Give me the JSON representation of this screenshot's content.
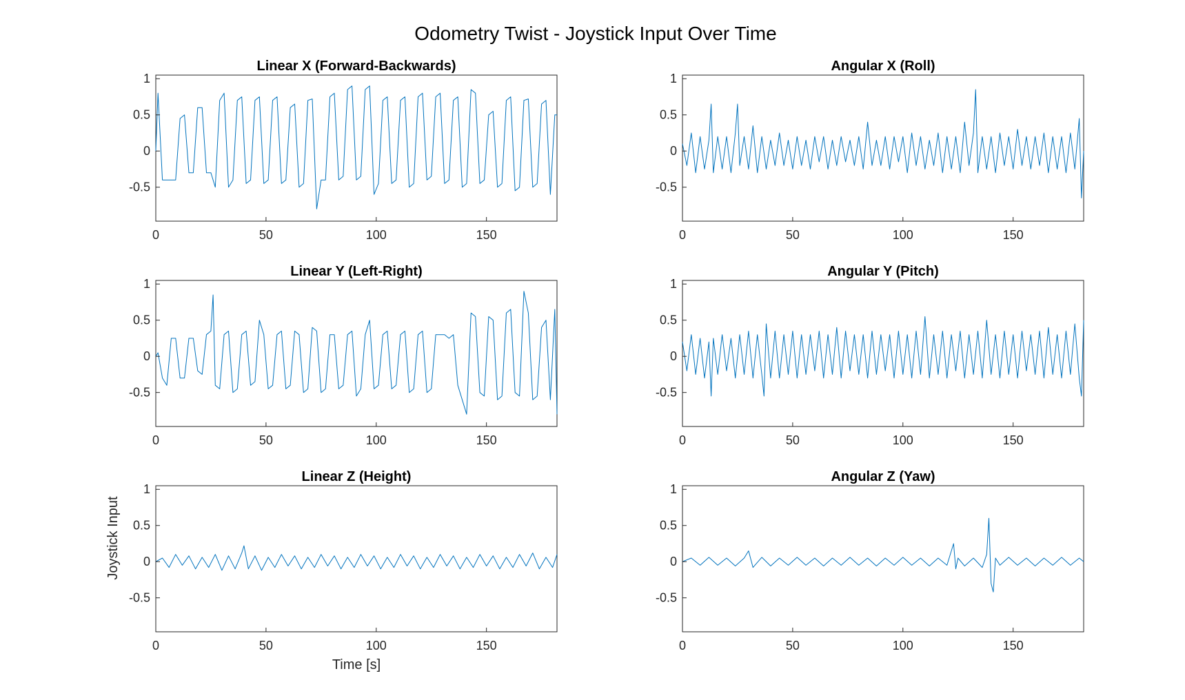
{
  "title": "Odometry Twist - Joystick Input Over Time",
  "line_color": "#0072BD",
  "chart_data": [
    {
      "type": "line",
      "title": "Linear X (Forward-Backwards)",
      "xlabel": "",
      "ylabel": "",
      "xlim": [
        0,
        182
      ],
      "ylim": [
        -0.97,
        1.05
      ],
      "xticks": [
        0,
        50,
        100,
        150
      ],
      "yticks": [
        -0.5,
        0,
        0.5,
        1
      ],
      "xtick_labels": [
        "0",
        "50",
        "100",
        "150"
      ],
      "ytick_labels": [
        "-0.5",
        "0",
        "0.5",
        "1"
      ],
      "x": [
        0,
        1,
        3,
        5,
        7,
        9,
        11,
        13,
        15,
        17,
        19,
        21,
        23,
        25,
        27,
        29,
        31,
        33,
        35,
        37,
        39,
        41,
        43,
        45,
        47,
        49,
        51,
        53,
        55,
        57,
        59,
        61,
        63,
        65,
        67,
        69,
        71,
        73,
        75,
        77,
        79,
        81,
        83,
        85,
        87,
        89,
        91,
        93,
        95,
        97,
        99,
        101,
        103,
        105,
        107,
        109,
        111,
        113,
        115,
        117,
        119,
        121,
        123,
        125,
        127,
        129,
        131,
        133,
        135,
        137,
        139,
        141,
        143,
        145,
        147,
        149,
        151,
        153,
        155,
        157,
        159,
        161,
        163,
        165,
        167,
        169,
        171,
        173,
        175,
        177,
        179,
        181,
        182
      ],
      "y": [
        0.0,
        0.8,
        -0.4,
        -0.4,
        -0.4,
        -0.4,
        0.45,
        0.5,
        -0.3,
        -0.3,
        0.6,
        0.6,
        -0.3,
        -0.3,
        -0.5,
        0.7,
        0.8,
        -0.5,
        -0.4,
        0.7,
        0.75,
        -0.45,
        -0.4,
        0.7,
        0.75,
        -0.45,
        -0.4,
        0.7,
        0.75,
        -0.45,
        -0.4,
        0.6,
        0.65,
        -0.5,
        -0.45,
        0.7,
        0.72,
        -0.8,
        -0.4,
        -0.4,
        0.75,
        0.8,
        -0.4,
        -0.35,
        0.85,
        0.9,
        -0.4,
        -0.35,
        0.85,
        0.9,
        -0.6,
        -0.45,
        0.7,
        0.75,
        -0.45,
        -0.4,
        0.7,
        0.75,
        -0.5,
        -0.45,
        0.75,
        0.8,
        -0.4,
        -0.35,
        0.75,
        0.8,
        -0.45,
        -0.4,
        0.7,
        0.75,
        -0.5,
        -0.45,
        0.85,
        0.8,
        -0.45,
        -0.4,
        0.5,
        0.55,
        -0.5,
        -0.45,
        0.7,
        0.75,
        -0.55,
        -0.5,
        0.7,
        0.72,
        -0.5,
        -0.45,
        0.65,
        0.7,
        -0.6,
        0.5,
        0.5
      ]
    },
    {
      "type": "line",
      "title": "Angular X (Roll)",
      "xlabel": "",
      "ylabel": "",
      "xlim": [
        0,
        182
      ],
      "ylim": [
        -0.97,
        1.05
      ],
      "xticks": [
        0,
        50,
        100,
        150
      ],
      "yticks": [
        -0.5,
        0,
        0.5,
        1
      ],
      "xtick_labels": [
        "0",
        "50",
        "100",
        "150"
      ],
      "ytick_labels": [
        "-0.5",
        "0",
        "0.5",
        "1"
      ],
      "x": [
        0,
        2,
        4,
        6,
        8,
        10,
        12,
        13,
        14,
        16,
        18,
        20,
        22,
        24,
        25,
        26,
        28,
        30,
        32,
        34,
        36,
        38,
        40,
        42,
        44,
        46,
        48,
        50,
        52,
        54,
        56,
        58,
        60,
        62,
        64,
        66,
        68,
        70,
        72,
        74,
        76,
        78,
        80,
        82,
        84,
        86,
        88,
        90,
        92,
        94,
        96,
        98,
        100,
        102,
        104,
        106,
        108,
        110,
        112,
        114,
        116,
        118,
        120,
        122,
        124,
        126,
        128,
        130,
        132,
        133,
        134,
        136,
        138,
        140,
        142,
        144,
        146,
        148,
        150,
        152,
        154,
        156,
        158,
        160,
        162,
        164,
        166,
        168,
        170,
        172,
        174,
        176,
        178,
        180,
        181,
        182
      ],
      "y": [
        0.1,
        -0.2,
        0.25,
        -0.3,
        0.2,
        -0.25,
        0.15,
        0.65,
        -0.3,
        0.2,
        -0.25,
        0.2,
        -0.3,
        0.25,
        0.65,
        -0.2,
        0.2,
        -0.25,
        0.35,
        -0.3,
        0.2,
        -0.25,
        0.15,
        -0.2,
        0.25,
        -0.2,
        0.15,
        -0.25,
        0.2,
        -0.2,
        0.15,
        -0.25,
        0.2,
        -0.15,
        0.2,
        -0.25,
        0.15,
        -0.2,
        0.2,
        -0.15,
        0.15,
        -0.2,
        0.2,
        -0.25,
        0.4,
        -0.2,
        0.15,
        -0.2,
        0.2,
        -0.25,
        0.2,
        -0.15,
        0.2,
        -0.3,
        0.25,
        -0.2,
        0.2,
        -0.25,
        0.15,
        -0.2,
        0.25,
        -0.3,
        0.2,
        -0.25,
        0.2,
        -0.3,
        0.4,
        -0.2,
        0.25,
        0.85,
        -0.3,
        0.2,
        -0.25,
        0.2,
        -0.3,
        0.25,
        -0.2,
        0.2,
        -0.25,
        0.3,
        -0.2,
        0.2,
        -0.25,
        0.2,
        -0.2,
        0.25,
        -0.3,
        0.2,
        -0.25,
        0.2,
        -0.3,
        0.25,
        -0.25,
        0.45,
        -0.65,
        0.0
      ]
    },
    {
      "type": "line",
      "title": "Linear Y (Left-Right)",
      "xlabel": "",
      "ylabel": "",
      "xlim": [
        0,
        182
      ],
      "ylim": [
        -0.97,
        1.05
      ],
      "xticks": [
        0,
        50,
        100,
        150
      ],
      "yticks": [
        -0.5,
        0,
        0.5,
        1
      ],
      "xtick_labels": [
        "0",
        "50",
        "100",
        "150"
      ],
      "ytick_labels": [
        "-0.5",
        "0",
        "0.5",
        "1"
      ],
      "x": [
        0,
        1,
        3,
        5,
        7,
        9,
        11,
        13,
        15,
        17,
        19,
        21,
        23,
        25,
        26,
        27,
        29,
        31,
        33,
        35,
        37,
        39,
        41,
        43,
        45,
        47,
        49,
        51,
        53,
        55,
        57,
        59,
        61,
        63,
        65,
        67,
        69,
        71,
        73,
        75,
        77,
        79,
        81,
        83,
        85,
        87,
        89,
        91,
        93,
        95,
        97,
        99,
        101,
        103,
        105,
        107,
        109,
        111,
        113,
        115,
        117,
        119,
        121,
        123,
        125,
        127,
        129,
        131,
        133,
        135,
        137,
        139,
        141,
        143,
        145,
        147,
        149,
        151,
        153,
        155,
        157,
        159,
        161,
        163,
        165,
        167,
        169,
        171,
        173,
        175,
        177,
        179,
        181,
        182
      ],
      "y": [
        0.0,
        0.05,
        -0.3,
        -0.4,
        0.25,
        0.25,
        -0.3,
        -0.3,
        0.25,
        0.25,
        -0.2,
        -0.25,
        0.3,
        0.35,
        0.85,
        -0.4,
        -0.45,
        0.3,
        0.35,
        -0.5,
        -0.45,
        0.3,
        0.35,
        -0.4,
        -0.35,
        0.5,
        0.3,
        -0.45,
        -0.4,
        0.3,
        0.35,
        -0.45,
        -0.4,
        0.35,
        0.3,
        -0.5,
        -0.45,
        0.4,
        0.35,
        -0.5,
        -0.45,
        0.3,
        0.3,
        -0.45,
        -0.4,
        0.3,
        0.35,
        -0.55,
        -0.45,
        0.3,
        0.5,
        -0.45,
        -0.4,
        0.3,
        0.35,
        -0.45,
        -0.4,
        0.3,
        0.35,
        -0.5,
        -0.45,
        0.3,
        0.35,
        -0.5,
        -0.45,
        0.3,
        0.3,
        0.3,
        0.25,
        0.3,
        -0.4,
        -0.6,
        -0.8,
        0.6,
        0.55,
        -0.5,
        -0.55,
        0.55,
        0.5,
        -0.6,
        -0.55,
        0.6,
        0.65,
        -0.5,
        -0.55,
        0.9,
        0.6,
        -0.6,
        -0.55,
        0.4,
        0.5,
        -0.6,
        0.65,
        -0.8
      ]
    },
    {
      "type": "line",
      "title": "Angular Y (Pitch)",
      "xlabel": "",
      "ylabel": "",
      "xlim": [
        0,
        182
      ],
      "ylim": [
        -0.97,
        1.05
      ],
      "xticks": [
        0,
        50,
        100,
        150
      ],
      "yticks": [
        -0.5,
        0,
        0.5,
        1
      ],
      "xtick_labels": [
        "0",
        "50",
        "100",
        "150"
      ],
      "ytick_labels": [
        "-0.5",
        "0",
        "0.5",
        "1"
      ],
      "x": [
        0,
        2,
        4,
        6,
        8,
        10,
        12,
        13,
        14,
        16,
        18,
        20,
        22,
        24,
        26,
        28,
        30,
        32,
        34,
        36,
        37,
        38,
        40,
        42,
        44,
        46,
        48,
        50,
        52,
        54,
        56,
        58,
        60,
        62,
        64,
        66,
        68,
        70,
        72,
        74,
        76,
        78,
        80,
        82,
        84,
        86,
        88,
        90,
        92,
        94,
        96,
        98,
        100,
        102,
        104,
        106,
        108,
        110,
        112,
        114,
        116,
        118,
        120,
        122,
        124,
        126,
        128,
        130,
        132,
        134,
        136,
        138,
        140,
        142,
        144,
        146,
        148,
        150,
        152,
        154,
        156,
        158,
        160,
        162,
        164,
        166,
        168,
        170,
        172,
        174,
        176,
        178,
        180,
        181,
        182
      ],
      "y": [
        0.2,
        -0.2,
        0.3,
        -0.25,
        0.25,
        -0.3,
        0.2,
        -0.55,
        0.25,
        -0.25,
        0.3,
        -0.2,
        0.25,
        -0.3,
        0.3,
        -0.25,
        0.35,
        -0.3,
        0.3,
        -0.25,
        -0.55,
        0.45,
        -0.3,
        0.35,
        -0.3,
        0.3,
        -0.25,
        0.35,
        -0.3,
        0.3,
        -0.25,
        0.3,
        -0.2,
        0.35,
        -0.3,
        0.3,
        -0.25,
        0.4,
        -0.3,
        0.35,
        -0.2,
        0.3,
        -0.25,
        0.3,
        -0.3,
        0.35,
        -0.25,
        0.3,
        -0.2,
        0.3,
        -0.3,
        0.35,
        -0.25,
        0.3,
        -0.3,
        0.35,
        -0.25,
        0.55,
        -0.3,
        0.3,
        -0.25,
        0.35,
        -0.3,
        0.3,
        -0.2,
        0.35,
        -0.3,
        0.3,
        -0.25,
        0.35,
        -0.3,
        0.5,
        -0.25,
        0.3,
        -0.3,
        0.35,
        -0.25,
        0.3,
        -0.3,
        0.35,
        -0.2,
        0.3,
        -0.25,
        0.35,
        -0.3,
        0.4,
        -0.25,
        0.3,
        -0.3,
        0.35,
        -0.25,
        0.45,
        -0.3,
        -0.55,
        0.5
      ]
    },
    {
      "type": "line",
      "title": "Linear Z (Height)",
      "xlabel": "Time [s]",
      "ylabel": "Joystick Input",
      "xlim": [
        0,
        182
      ],
      "ylim": [
        -0.97,
        1.05
      ],
      "xticks": [
        0,
        50,
        100,
        150
      ],
      "yticks": [
        -0.5,
        0,
        0.5,
        1
      ],
      "xtick_labels": [
        "0",
        "50",
        "100",
        "150"
      ],
      "ytick_labels": [
        "-0.5",
        "0",
        "0.5",
        "1"
      ],
      "x": [
        0,
        3,
        6,
        9,
        12,
        15,
        18,
        21,
        24,
        27,
        30,
        33,
        36,
        39,
        40,
        42,
        45,
        48,
        51,
        54,
        57,
        60,
        63,
        66,
        69,
        72,
        75,
        78,
        81,
        84,
        87,
        90,
        93,
        96,
        99,
        102,
        105,
        108,
        111,
        114,
        117,
        120,
        123,
        126,
        129,
        132,
        135,
        138,
        141,
        144,
        147,
        150,
        153,
        156,
        159,
        162,
        165,
        168,
        171,
        174,
        177,
        180,
        182
      ],
      "y": [
        0.0,
        0.05,
        -0.08,
        0.1,
        -0.05,
        0.08,
        -0.1,
        0.06,
        -0.08,
        0.1,
        -0.12,
        0.08,
        -0.1,
        0.12,
        0.22,
        -0.1,
        0.08,
        -0.12,
        0.06,
        -0.08,
        0.1,
        -0.06,
        0.08,
        -0.1,
        0.06,
        -0.08,
        0.1,
        -0.06,
        0.08,
        -0.1,
        0.06,
        -0.08,
        0.1,
        -0.06,
        0.08,
        -0.1,
        0.06,
        -0.08,
        0.1,
        -0.06,
        0.08,
        -0.1,
        0.06,
        -0.08,
        0.1,
        -0.06,
        0.08,
        -0.1,
        0.06,
        -0.08,
        0.1,
        -0.06,
        0.08,
        -0.1,
        0.06,
        -0.08,
        0.1,
        -0.06,
        0.12,
        -0.1,
        0.06,
        -0.08,
        0.1
      ]
    },
    {
      "type": "line",
      "title": "Angular Z (Yaw)",
      "xlabel": "",
      "ylabel": "",
      "xlim": [
        0,
        182
      ],
      "ylim": [
        -0.97,
        1.05
      ],
      "xticks": [
        0,
        50,
        100,
        150
      ],
      "yticks": [
        -0.5,
        0,
        0.5,
        1
      ],
      "xtick_labels": [
        "0",
        "50",
        "100",
        "150"
      ],
      "ytick_labels": [
        "-0.5",
        "0",
        "0.5",
        "1"
      ],
      "x": [
        0,
        4,
        8,
        12,
        16,
        20,
        24,
        28,
        30,
        32,
        36,
        40,
        44,
        48,
        52,
        56,
        60,
        64,
        68,
        72,
        76,
        80,
        84,
        88,
        92,
        96,
        100,
        104,
        108,
        112,
        116,
        120,
        123,
        124,
        125,
        128,
        132,
        136,
        138,
        139,
        140,
        141,
        142,
        144,
        148,
        152,
        156,
        160,
        164,
        168,
        172,
        176,
        180,
        182
      ],
      "y": [
        0.0,
        0.05,
        -0.05,
        0.06,
        -0.05,
        0.05,
        -0.06,
        0.05,
        0.15,
        -0.08,
        0.06,
        -0.06,
        0.05,
        -0.05,
        0.06,
        -0.05,
        0.05,
        -0.06,
        0.05,
        -0.05,
        0.06,
        -0.05,
        0.05,
        -0.06,
        0.05,
        -0.05,
        0.06,
        -0.05,
        0.05,
        -0.06,
        0.05,
        -0.05,
        0.25,
        -0.1,
        0.05,
        -0.06,
        0.05,
        -0.08,
        0.1,
        0.6,
        -0.3,
        -0.42,
        0.05,
        -0.05,
        0.06,
        -0.05,
        0.05,
        -0.06,
        0.05,
        -0.05,
        0.06,
        -0.05,
        0.05,
        0.0
      ]
    }
  ]
}
